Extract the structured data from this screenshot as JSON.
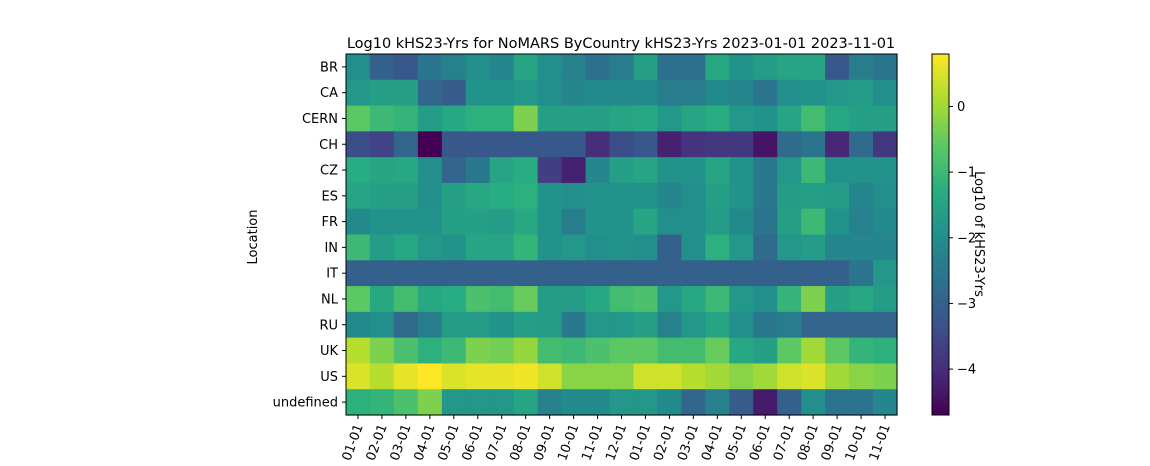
{
  "chart_data": {
    "type": "heatmap",
    "title": "Log10 kHS23-Yrs for NoMARS ByCountry kHS23-Yrs 2023-01-01 2023-11-01",
    "xlabel": "",
    "ylabel": "Location",
    "colorbar_label": "Log10 of kHS23-Yrs",
    "colormap": "viridis",
    "vmin": -4.7,
    "vmax": 0.8,
    "colorbar_ticks": [
      0,
      -1,
      -2,
      -3,
      -4
    ],
    "colorbar_tick_labels": [
      "0",
      "−1",
      "−2",
      "−3",
      "−4"
    ],
    "x": [
      "01-01",
      "02-01",
      "03-01",
      "04-01",
      "05-01",
      "06-01",
      "07-01",
      "08-01",
      "09-01",
      "10-01",
      "11-01",
      "12-01",
      "01-01",
      "02-01",
      "03-01",
      "04-01",
      "05-01",
      "06-01",
      "07-01",
      "08-01",
      "09-01",
      "10-01",
      "11-01"
    ],
    "y": [
      "BR",
      "CA",
      "CERN",
      "CH",
      "CZ",
      "ES",
      "FR",
      "IN",
      "IT",
      "NL",
      "RU",
      "UK",
      "US",
      "undefined"
    ],
    "values": [
      [
        -2.0,
        -3.0,
        -3.2,
        -2.6,
        -2.3,
        -2.0,
        -2.2,
        -1.5,
        -2.0,
        -2.3,
        -2.7,
        -2.4,
        -1.6,
        -2.7,
        -2.7,
        -1.4,
        -1.9,
        -1.7,
        -1.5,
        -1.5,
        -3.2,
        -2.4,
        -2.6
      ],
      [
        -1.8,
        -1.6,
        -1.6,
        -2.9,
        -3.1,
        -1.9,
        -1.9,
        -1.8,
        -2.0,
        -2.2,
        -2.1,
        -2.1,
        -2.1,
        -2.4,
        -2.4,
        -2.1,
        -2.2,
        -2.6,
        -2.0,
        -1.9,
        -1.8,
        -1.7,
        -2.0
      ],
      [
        -0.6,
        -1.0,
        -1.1,
        -1.7,
        -1.4,
        -1.2,
        -1.2,
        -0.3,
        -1.6,
        -1.6,
        -1.6,
        -1.5,
        -1.4,
        -1.8,
        -1.5,
        -1.3,
        -1.8,
        -1.9,
        -1.5,
        -0.9,
        -1.4,
        -1.6,
        -1.6
      ],
      [
        -3.4,
        -3.6,
        -2.9,
        -4.7,
        -3.2,
        -3.2,
        -3.2,
        -3.2,
        -3.2,
        -3.2,
        -4.0,
        -3.4,
        -3.2,
        -4.2,
        -3.9,
        -3.8,
        -3.8,
        -4.4,
        -2.8,
        -2.6,
        -4.1,
        -2.8,
        -3.8
      ],
      [
        -1.3,
        -1.5,
        -1.4,
        -2.0,
        -2.9,
        -2.5,
        -1.5,
        -1.3,
        -3.7,
        -4.2,
        -2.2,
        -1.6,
        -1.5,
        -1.9,
        -1.9,
        -1.5,
        -1.9,
        -2.5,
        -1.8,
        -1.0,
        -1.9,
        -1.9,
        -1.9
      ],
      [
        -1.5,
        -1.6,
        -1.6,
        -2.0,
        -1.6,
        -1.4,
        -1.3,
        -1.2,
        -1.9,
        -2.0,
        -1.9,
        -1.9,
        -1.9,
        -2.2,
        -2.0,
        -1.6,
        -1.9,
        -2.5,
        -1.7,
        -1.6,
        -1.7,
        -2.2,
        -2.0
      ],
      [
        -2.1,
        -1.9,
        -1.9,
        -1.9,
        -1.6,
        -1.6,
        -1.7,
        -1.4,
        -1.9,
        -2.4,
        -1.9,
        -1.9,
        -1.5,
        -2.0,
        -2.0,
        -1.7,
        -2.1,
        -2.6,
        -1.6,
        -1.0,
        -1.9,
        -2.3,
        -2.1
      ],
      [
        -1.0,
        -1.7,
        -1.4,
        -1.8,
        -1.9,
        -1.5,
        -1.5,
        -1.1,
        -1.9,
        -1.8,
        -2.0,
        -1.9,
        -2.0,
        -3.0,
        -2.0,
        -1.2,
        -1.8,
        -2.8,
        -1.8,
        -1.7,
        -2.2,
        -2.2,
        -2.2
      ],
      [
        -3.0,
        -3.0,
        -3.0,
        -3.0,
        -3.0,
        -3.0,
        -3.0,
        -3.0,
        -3.0,
        -3.0,
        -3.0,
        -3.0,
        -3.0,
        -3.0,
        -3.0,
        -3.0,
        -3.0,
        -3.0,
        -3.0,
        -3.0,
        -3.0,
        -2.6,
        -1.8
      ],
      [
        -0.6,
        -1.4,
        -0.9,
        -1.4,
        -1.3,
        -0.8,
        -0.9,
        -0.5,
        -1.7,
        -1.7,
        -1.4,
        -0.9,
        -0.8,
        -1.8,
        -1.4,
        -1.0,
        -1.8,
        -2.0,
        -1.1,
        -0.3,
        -1.6,
        -1.4,
        -1.7
      ],
      [
        -2.1,
        -2.0,
        -2.8,
        -2.4,
        -1.7,
        -1.7,
        -1.9,
        -1.6,
        -1.7,
        -2.5,
        -1.8,
        -1.8,
        -1.6,
        -2.3,
        -1.8,
        -1.5,
        -2.0,
        -2.5,
        -2.4,
        -2.9,
        -2.9,
        -2.9,
        -2.9
      ],
      [
        0.2,
        -0.3,
        -0.8,
        -1.2,
        -1.0,
        -0.3,
        -0.4,
        -0.1,
        -0.9,
        -1.0,
        -0.8,
        -0.6,
        -0.6,
        -0.9,
        -0.9,
        -0.5,
        -1.4,
        -1.6,
        -0.6,
        0.0,
        -0.6,
        -1.1,
        -1.2
      ],
      [
        0.5,
        0.2,
        0.6,
        0.8,
        0.5,
        0.6,
        0.6,
        0.7,
        0.4,
        -0.2,
        -0.2,
        -0.2,
        0.4,
        0.4,
        0.2,
        0.0,
        -0.2,
        0.0,
        0.4,
        0.5,
        0.0,
        -0.2,
        -0.3
      ],
      [
        -1.2,
        -1.1,
        -0.8,
        -0.3,
        -1.8,
        -1.8,
        -1.8,
        -1.5,
        -2.3,
        -2.1,
        -2.1,
        -1.8,
        -1.8,
        -2.1,
        -2.9,
        -2.3,
        -3.1,
        -4.3,
        -3.0,
        -2.0,
        -2.6,
        -2.6,
        -2.2
      ]
    ]
  }
}
